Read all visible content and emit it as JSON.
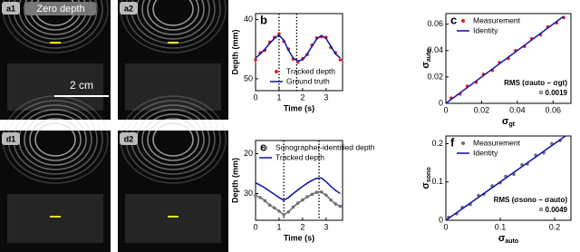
{
  "images": [
    {
      "label": "a1",
      "note": "Zero depth",
      "scale_bar": "2 cm"
    },
    {
      "label": "a2"
    },
    {
      "label": "d1"
    },
    {
      "label": "d2"
    }
  ],
  "chart_data": [
    {
      "type": "line",
      "panel": "b",
      "xlabel": "Time (s)",
      "ylabel": "Depth (mm)",
      "x": [
        0,
        0.2,
        0.4,
        0.6,
        0.8,
        1.0,
        1.2,
        1.4,
        1.6,
        1.8,
        2.0,
        2.2,
        2.4,
        2.6,
        2.8,
        3.0,
        3.2,
        3.4,
        3.6
      ],
      "xlim": [
        0,
        3.7
      ],
      "xticks": [
        0,
        1,
        2,
        3
      ],
      "ylim": [
        52,
        39
      ],
      "yticks": [
        40,
        50
      ],
      "vlines": [
        1,
        1.75
      ],
      "legend": "lower right",
      "series": [
        {
          "name": "Tracked depth",
          "color": "#e02020",
          "mode": "markers",
          "values": [
            46.8,
            45.6,
            45.2,
            43.8,
            43.0,
            42.4,
            43.7,
            45.0,
            46.7,
            47.2,
            46.6,
            45.9,
            44.3,
            43.1,
            42.9,
            43.0,
            44.7,
            45.6,
            46.8
          ]
        },
        {
          "name": "Ground truth",
          "color": "#1a1aa8",
          "mode": "line",
          "values": [
            46.5,
            45.8,
            45,
            44,
            43.2,
            42.6,
            43.5,
            45.2,
            46.5,
            47,
            46.8,
            45.8,
            44.5,
            43.3,
            42.7,
            43.2,
            44.5,
            45.8,
            46.5
          ]
        }
      ]
    },
    {
      "type": "scatter",
      "panel": "c",
      "xlabel": {
        "symbol": "σ",
        "sub": "gt"
      },
      "ylabel": {
        "symbol": "σ",
        "sub": "auto"
      },
      "xlim": [
        0,
        0.07
      ],
      "xticks": [
        0,
        0.02,
        0.04,
        0.06
      ],
      "ylim": [
        0,
        0.068
      ],
      "yticks": [
        0,
        0.02,
        0.04,
        0.06
      ],
      "legend": "upper left",
      "annotation": [
        "RMS (σauto − σgt)",
        "= 0.0019"
      ],
      "series": [
        {
          "name": "Measurement",
          "color": "#e02020",
          "mode": "markers",
          "x": [
            0.003,
            0.008,
            0.012,
            0.017,
            0.021,
            0.026,
            0.03,
            0.035,
            0.039,
            0.044,
            0.048,
            0.053,
            0.057,
            0.062,
            0.066
          ],
          "values": [
            0.004,
            0.007,
            0.013,
            0.016,
            0.022,
            0.025,
            0.031,
            0.034,
            0.04,
            0.043,
            0.049,
            0.052,
            0.058,
            0.061,
            0.065
          ]
        },
        {
          "name": "Identity",
          "color": "#1a1aa8",
          "mode": "line",
          "x": [
            0,
            0.066
          ],
          "values": [
            0,
            0.066
          ]
        }
      ]
    },
    {
      "type": "line",
      "panel": "e",
      "xlabel": "Time (s)",
      "ylabel": "Depth (mm)",
      "x": [
        0,
        0.2,
        0.4,
        0.6,
        0.8,
        1.0,
        1.2,
        1.4,
        1.6,
        1.8,
        2.0,
        2.2,
        2.4,
        2.6,
        2.8,
        3.0,
        3.2,
        3.4,
        3.6
      ],
      "xlim": [
        0,
        3.7
      ],
      "xticks": [
        0,
        1,
        2,
        3
      ],
      "ylim": [
        36.7,
        16.7
      ],
      "yticks": [
        20,
        30
      ],
      "vlines": [
        1.2,
        2.7
      ],
      "legend": "upper right",
      "series": [
        {
          "name": "Sonographer-identified depth",
          "color": "#707070",
          "mode": "markers+line",
          "values": [
            30.5,
            31.0,
            31.8,
            32.9,
            33.6,
            34.4,
            35.3,
            34.6,
            33.4,
            32.4,
            31.6,
            30.8,
            30.2,
            29.7,
            29.6,
            30.4,
            31.6,
            32.6,
            33.2
          ]
        },
        {
          "name": "Tracked depth",
          "color": "#1a1aa8",
          "mode": "line",
          "values": [
            27.3,
            27.9,
            28.6,
            29.4,
            30.2,
            31.0,
            31.7,
            31.0,
            30.0,
            29.1,
            28.2,
            27.4,
            26.7,
            26.2,
            26.1,
            27.0,
            28.2,
            29.2,
            30.0
          ]
        }
      ]
    },
    {
      "type": "scatter",
      "panel": "f",
      "xlabel": {
        "symbol": "σ",
        "sub": "auto"
      },
      "ylabel": {
        "symbol": "σ",
        "sub": "sono"
      },
      "xlim": [
        0,
        0.23
      ],
      "xticks": [
        0,
        0.1,
        0.2
      ],
      "ylim": [
        0,
        0.22
      ],
      "yticks": [
        0,
        0.1,
        0.2
      ],
      "legend": "upper left",
      "annotation": [
        "RMS (σsono − σauto)",
        "= 0.0049"
      ],
      "series": [
        {
          "name": "Measurement",
          "color": "#707070",
          "mode": "markers",
          "x": [
            0.005,
            0.02,
            0.03,
            0.045,
            0.06,
            0.07,
            0.085,
            0.1,
            0.11,
            0.125,
            0.14,
            0.15,
            0.165,
            0.18,
            0.195,
            0.21
          ],
          "values": [
            0.008,
            0.017,
            0.034,
            0.041,
            0.065,
            0.068,
            0.09,
            0.098,
            0.115,
            0.12,
            0.145,
            0.147,
            0.17,
            0.176,
            0.2,
            0.208
          ]
        },
        {
          "name": "Identity",
          "color": "#1a1aa8",
          "mode": "line",
          "x": [
            0,
            0.22
          ],
          "values": [
            0,
            0.22
          ]
        }
      ]
    }
  ]
}
